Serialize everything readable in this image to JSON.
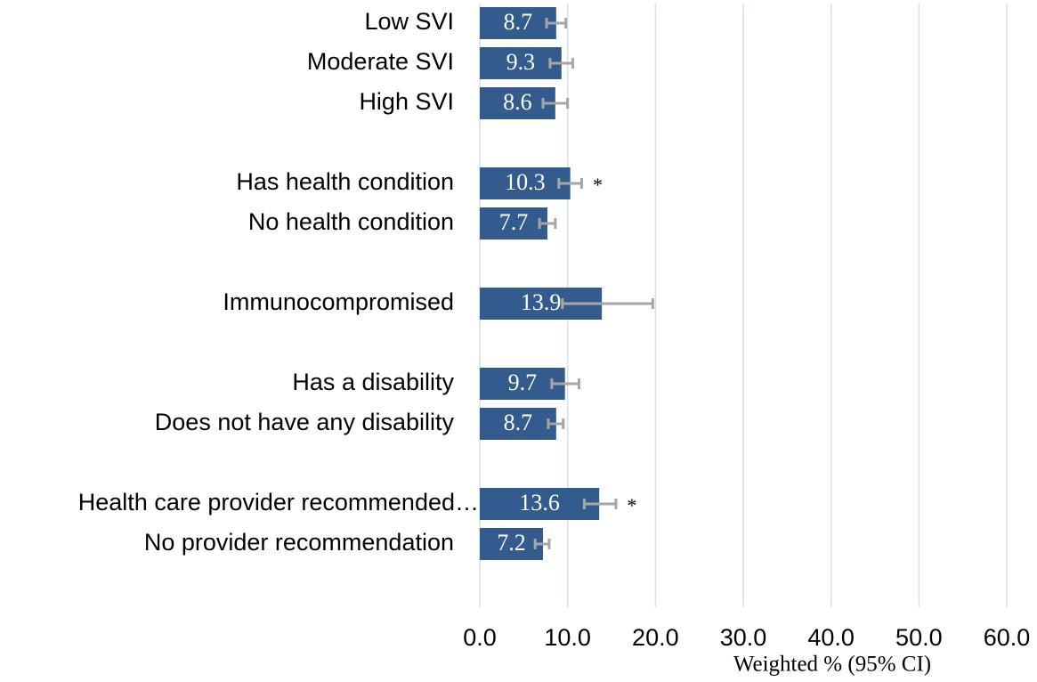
{
  "chart_data": {
    "type": "bar",
    "orientation": "horizontal",
    "x_label": "Weighted % (95% CI)",
    "categories": [
      "Low SVI",
      "Moderate SVI",
      "High SVI",
      null,
      "Has health condition",
      "No health condition",
      null,
      "Immunocompromised",
      null,
      "Has a disability",
      "Does not have any disability",
      null,
      "Health care provider recommended…",
      "No provider recommendation"
    ],
    "values": [
      8.7,
      9.3,
      8.6,
      null,
      10.3,
      7.7,
      null,
      13.9,
      null,
      9.7,
      8.7,
      null,
      13.6,
      7.2
    ],
    "ci_low": [
      7.6,
      8.0,
      7.2,
      null,
      9.0,
      6.8,
      null,
      9.4,
      null,
      8.2,
      7.8,
      null,
      11.9,
      6.3
    ],
    "ci_high": [
      9.8,
      10.6,
      10.0,
      null,
      11.6,
      8.6,
      null,
      19.7,
      null,
      11.3,
      9.5,
      null,
      15.5,
      7.9
    ],
    "markers": [
      null,
      null,
      null,
      null,
      "*",
      null,
      null,
      null,
      null,
      null,
      null,
      null,
      "*",
      null
    ],
    "color": "#335b8e",
    "error_color": "#a6a6a6",
    "xlim": [
      0,
      60
    ],
    "xticks": [
      {
        "value": 0,
        "label": "0.0"
      },
      {
        "value": 10,
        "label": "10.0"
      },
      {
        "value": 20,
        "label": "20.0"
      },
      {
        "value": 30,
        "label": "30.0"
      },
      {
        "value": 40,
        "label": "40.0"
      },
      {
        "value": 50,
        "label": "50.0"
      },
      {
        "value": 60,
        "label": "60.0"
      }
    ],
    "grid": true
  }
}
